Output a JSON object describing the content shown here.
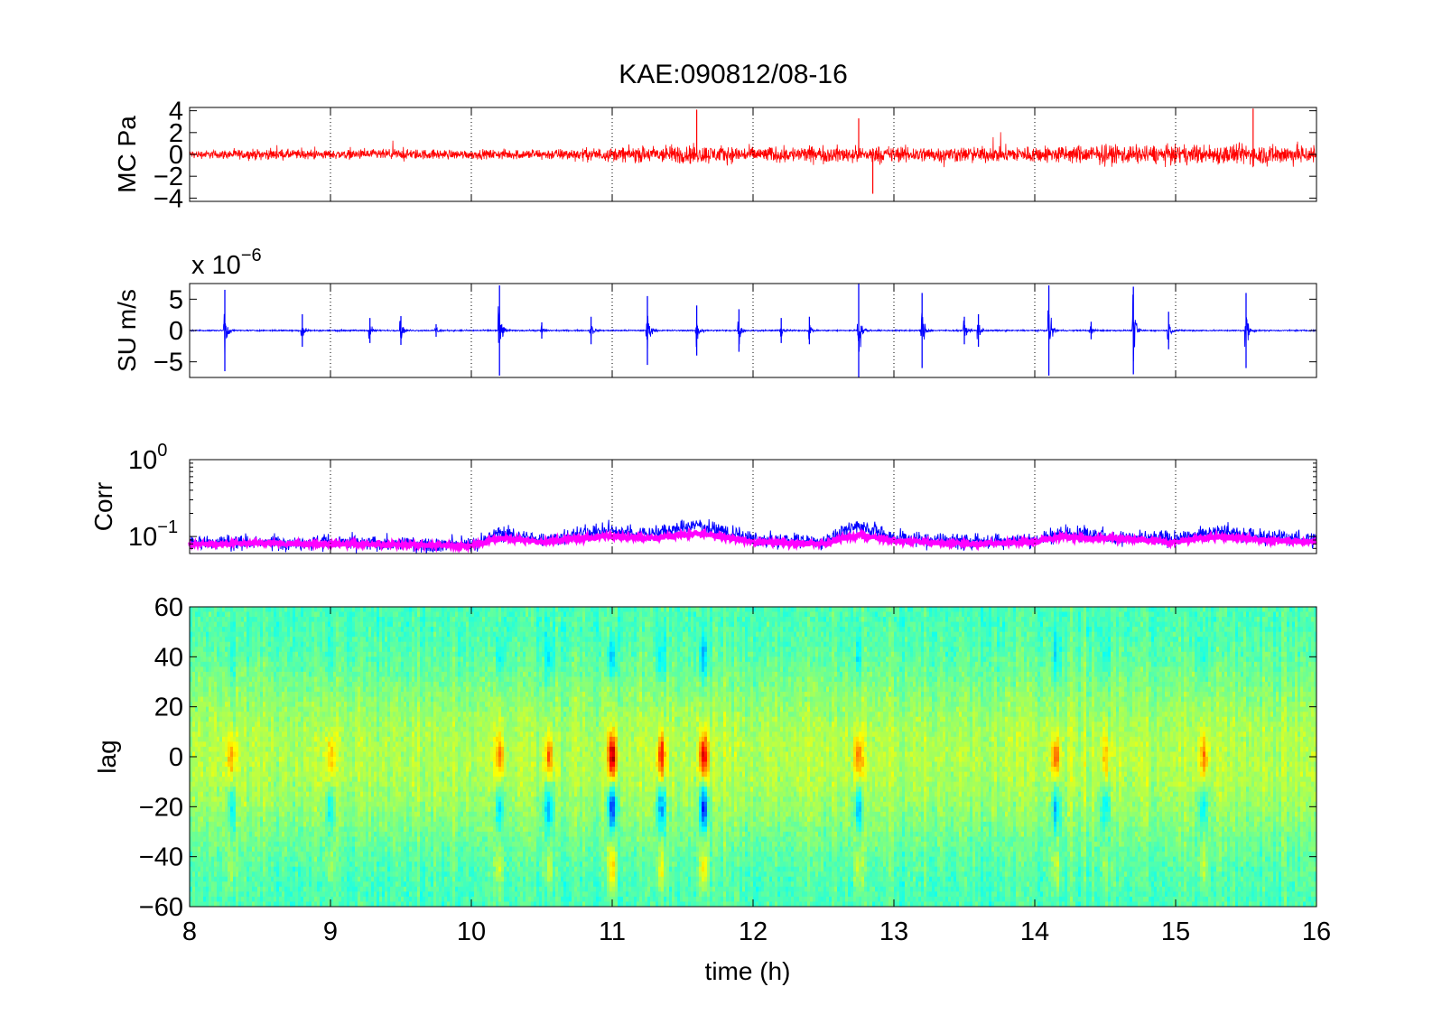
{
  "figure": {
    "title": "KAE:090812/08-16",
    "xlabel": "time (h)",
    "x_range": [
      8,
      16
    ],
    "x_ticks": [
      "8",
      "9",
      "10",
      "11",
      "12",
      "13",
      "14",
      "15",
      "16"
    ]
  },
  "colors": {
    "pressure": "#ff0000",
    "velocity": "#0000ff",
    "corr_raw": "#0000ff",
    "corr_smooth": "#ff00ff",
    "colormap": "jet"
  },
  "chart_data": [
    {
      "type": "line",
      "ylabel": "MC Pa",
      "ylim": [
        -4.3,
        4.3
      ],
      "y_ticks": [
        "4",
        "2",
        "0",
        "−2",
        "−4"
      ],
      "grid": "x-dotted",
      "series": [
        {
          "values_envelope": {
            "x": [
              8,
              8.5,
              9,
              9.5,
              10,
              10.5,
              11,
              11.5,
              12,
              12.5,
              13,
              13.5,
              14,
              14.5,
              15,
              15.5,
              16
            ],
            "amp": [
              0.5,
              0.7,
              0.6,
              0.7,
              0.6,
              0.7,
              0.9,
              1.3,
              1.0,
              1.1,
              1.1,
              1.0,
              1.1,
              1.3,
              1.2,
              1.4,
              1.3
            ]
          }
        }
      ],
      "spikes": [
        {
          "x": 11.6,
          "y": 4.1
        },
        {
          "x": 12.85,
          "y": -3.6
        },
        {
          "x": 12.75,
          "y": 3.3
        },
        {
          "x": 15.55,
          "y": 4.2
        }
      ]
    },
    {
      "type": "line",
      "ylabel": "SU m/s",
      "scale_label": "x 10",
      "scale_exp": "−6",
      "ylim": [
        -7.5,
        7.5
      ],
      "y_ticks": [
        "5",
        "0",
        "−5"
      ],
      "grid": "x-dotted",
      "series": [
        {
          "bursts": [
            {
              "x": 8.25,
              "a": 6.5
            },
            {
              "x": 8.8,
              "a": 2.6
            },
            {
              "x": 9.28,
              "a": 2.0
            },
            {
              "x": 9.5,
              "a": 2.3
            },
            {
              "x": 9.75,
              "a": 1.0
            },
            {
              "x": 10.2,
              "a": 7.2
            },
            {
              "x": 10.5,
              "a": 1.3
            },
            {
              "x": 10.85,
              "a": 2.2
            },
            {
              "x": 11.25,
              "a": 5.5
            },
            {
              "x": 11.6,
              "a": 4.0
            },
            {
              "x": 11.9,
              "a": 3.4
            },
            {
              "x": 12.2,
              "a": 2.0
            },
            {
              "x": 12.4,
              "a": 2.2
            },
            {
              "x": 12.75,
              "a": 7.5
            },
            {
              "x": 13.2,
              "a": 6.0
            },
            {
              "x": 13.5,
              "a": 2.2
            },
            {
              "x": 13.6,
              "a": 2.6
            },
            {
              "x": 14.1,
              "a": 7.2
            },
            {
              "x": 14.4,
              "a": 1.4
            },
            {
              "x": 14.7,
              "a": 7.0
            },
            {
              "x": 14.95,
              "a": 3.0
            },
            {
              "x": 15.5,
              "a": 6.0
            }
          ]
        }
      ]
    },
    {
      "type": "line",
      "ylabel": "Corr",
      "yscale": "log",
      "ylim": [
        0.06,
        1.0
      ],
      "y_ticks": [
        {
          "base": "10",
          "exp": "0"
        },
        {
          "base": "10",
          "exp": "−1"
        }
      ],
      "grid": "x-dotted",
      "series": [
        {
          "name": "",
          "style": "raw",
          "level_points": {
            "x": [
              8,
              8.5,
              9,
              9.5,
              10,
              10.2,
              10.5,
              10.95,
              11.3,
              11.6,
              12,
              12.5,
              12.75,
              13,
              13.5,
              14,
              14.2,
              14.5,
              15,
              15.3,
              15.6,
              16
            ],
            "y": [
              0.082,
              0.085,
              0.083,
              0.08,
              0.078,
              0.11,
              0.09,
              0.12,
              0.11,
              0.14,
              0.09,
              0.085,
              0.14,
              0.095,
              0.085,
              0.09,
              0.11,
              0.1,
              0.09,
              0.12,
              0.1,
              0.09
            ]
          }
        },
        {
          "name": "",
          "style": "smooth",
          "level_points": {
            "x": [
              8,
              8.5,
              9,
              9.5,
              10,
              10.2,
              10.5,
              10.95,
              11.3,
              11.6,
              12,
              12.5,
              12.75,
              13,
              13.5,
              14,
              14.2,
              14.5,
              15,
              15.3,
              15.6,
              16
            ],
            "y": [
              0.08,
              0.082,
              0.08,
              0.078,
              0.075,
              0.095,
              0.085,
              0.1,
              0.095,
              0.11,
              0.085,
              0.08,
              0.105,
              0.088,
              0.08,
              0.085,
              0.1,
              0.095,
              0.085,
              0.1,
              0.09,
              0.085
            ]
          }
        }
      ]
    },
    {
      "type": "heatmap",
      "ylabel": "lag",
      "ylim": [
        -60,
        60
      ],
      "y_ticks": [
        "60",
        "40",
        "20",
        "0",
        "−20",
        "−40",
        "−60"
      ],
      "colormap": "jet",
      "features": [
        {
          "x": 11.0,
          "pos": 0.95,
          "neg": -0.95
        },
        {
          "x": 11.35,
          "pos": 0.7,
          "neg": -0.7
        },
        {
          "x": 11.65,
          "pos": 0.9,
          "neg": -0.9
        },
        {
          "x": 10.55,
          "pos": 0.55,
          "neg": -0.55
        },
        {
          "x": 10.2,
          "pos": 0.45,
          "neg": -0.5
        },
        {
          "x": 8.3,
          "pos": 0.4,
          "neg": -0.35
        },
        {
          "x": 9.0,
          "pos": 0.35,
          "neg": -0.3
        },
        {
          "x": 12.75,
          "pos": 0.5,
          "neg": -0.5
        },
        {
          "x": 14.15,
          "pos": 0.55,
          "neg": -0.5
        },
        {
          "x": 14.5,
          "pos": 0.3,
          "neg": -0.4
        },
        {
          "x": 15.2,
          "pos": 0.45,
          "neg": -0.45
        }
      ]
    }
  ]
}
